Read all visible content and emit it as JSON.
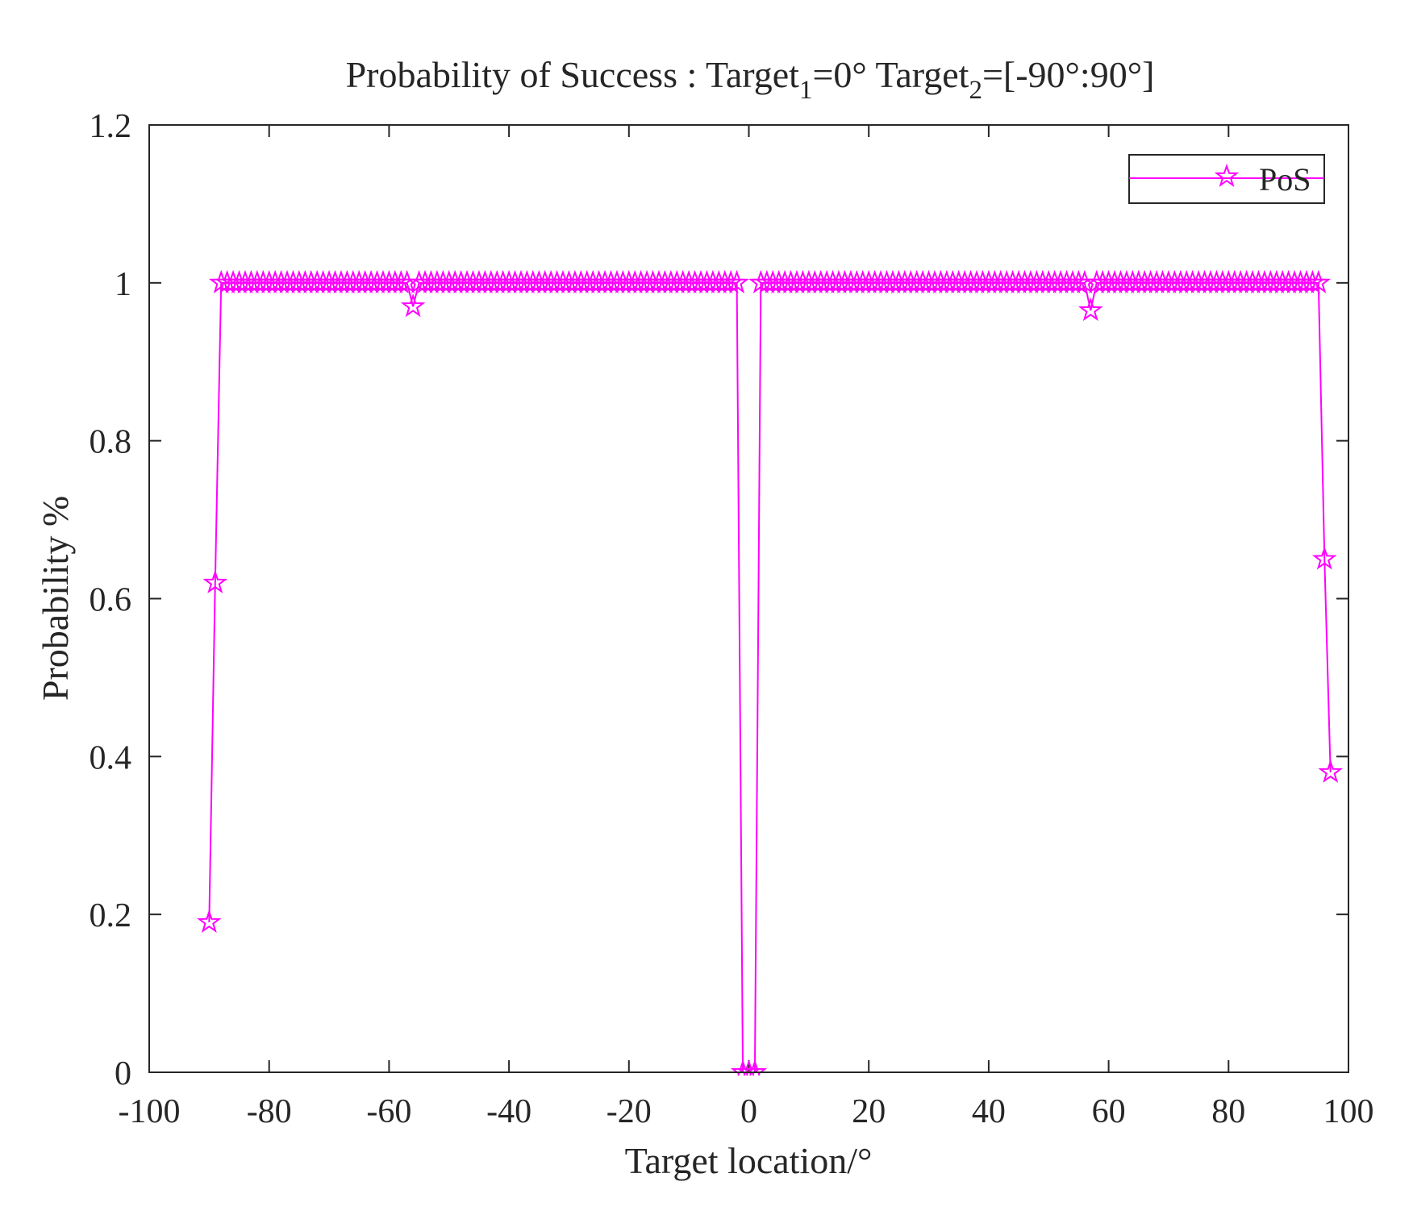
{
  "chart_data": {
    "type": "line",
    "title": {
      "prefix": "Probability of Success : Target",
      "sub1": "1",
      "mid": "=0° Target",
      "sub2": "2",
      "suffix": "=[-90°:90°]"
    },
    "xlabel": "Target location/°",
    "ylabel": "Probability %",
    "xlim": [
      -100,
      100
    ],
    "ylim": [
      0,
      1.2
    ],
    "xticks": [
      -100,
      -80,
      -60,
      -40,
      -20,
      0,
      20,
      40,
      60,
      80,
      100
    ],
    "yticks": [
      0,
      0.2,
      0.4,
      0.6,
      0.8,
      1,
      1.2
    ],
    "xtick_labels": [
      "-100",
      "-80",
      "-60",
      "-40",
      "-20",
      "0",
      "20",
      "40",
      "60",
      "80",
      "100"
    ],
    "ytick_labels": [
      "0",
      "0.2",
      "0.4",
      "0.6",
      "0.8",
      "1",
      "1.2"
    ],
    "grid": false,
    "legend": {
      "position": "top-right",
      "entries": [
        "PoS"
      ]
    },
    "series": [
      {
        "name": "PoS",
        "color": "#ff00ff",
        "marker": "pentagram",
        "x_start": -90,
        "x_step": 1,
        "y": [
          0.19,
          0.62,
          1,
          1,
          1,
          1,
          1,
          1,
          1,
          1,
          1,
          1,
          1,
          1,
          1,
          1,
          1,
          1,
          1,
          1,
          1,
          1,
          1,
          1,
          1,
          1,
          1,
          1,
          1,
          1,
          1,
          1,
          1,
          1,
          0.97,
          1,
          1,
          1,
          1,
          1,
          1,
          1,
          1,
          1,
          1,
          1,
          1,
          1,
          1,
          1,
          1,
          1,
          1,
          1,
          1,
          1,
          1,
          1,
          1,
          1,
          1,
          1,
          1,
          1,
          1,
          1,
          1,
          1,
          1,
          1,
          1,
          1,
          1,
          1,
          1,
          1,
          1,
          1,
          1,
          1,
          1,
          1,
          1,
          1,
          1,
          1,
          1,
          1,
          1,
          0,
          0,
          0,
          1,
          1,
          1,
          1,
          1,
          1,
          1,
          1,
          1,
          1,
          1,
          1,
          1,
          1,
          1,
          1,
          1,
          1,
          1,
          1,
          1,
          1,
          1,
          1,
          1,
          1,
          1,
          1,
          1,
          1,
          1,
          1,
          1,
          1,
          1,
          1,
          1,
          1,
          1,
          1,
          1,
          1,
          1,
          1,
          1,
          1,
          1,
          1,
          1,
          1,
          1,
          1,
          1,
          1,
          1,
          0.965,
          1,
          1,
          1,
          1,
          1,
          1,
          1,
          1,
          1,
          1,
          1,
          1,
          1,
          1,
          1,
          1,
          1,
          1,
          1,
          1,
          1,
          1,
          1,
          1,
          1,
          1,
          1,
          1,
          1,
          1,
          1,
          1,
          1,
          1,
          1,
          1,
          1,
          1,
          0.65,
          0.38
        ]
      }
    ]
  }
}
